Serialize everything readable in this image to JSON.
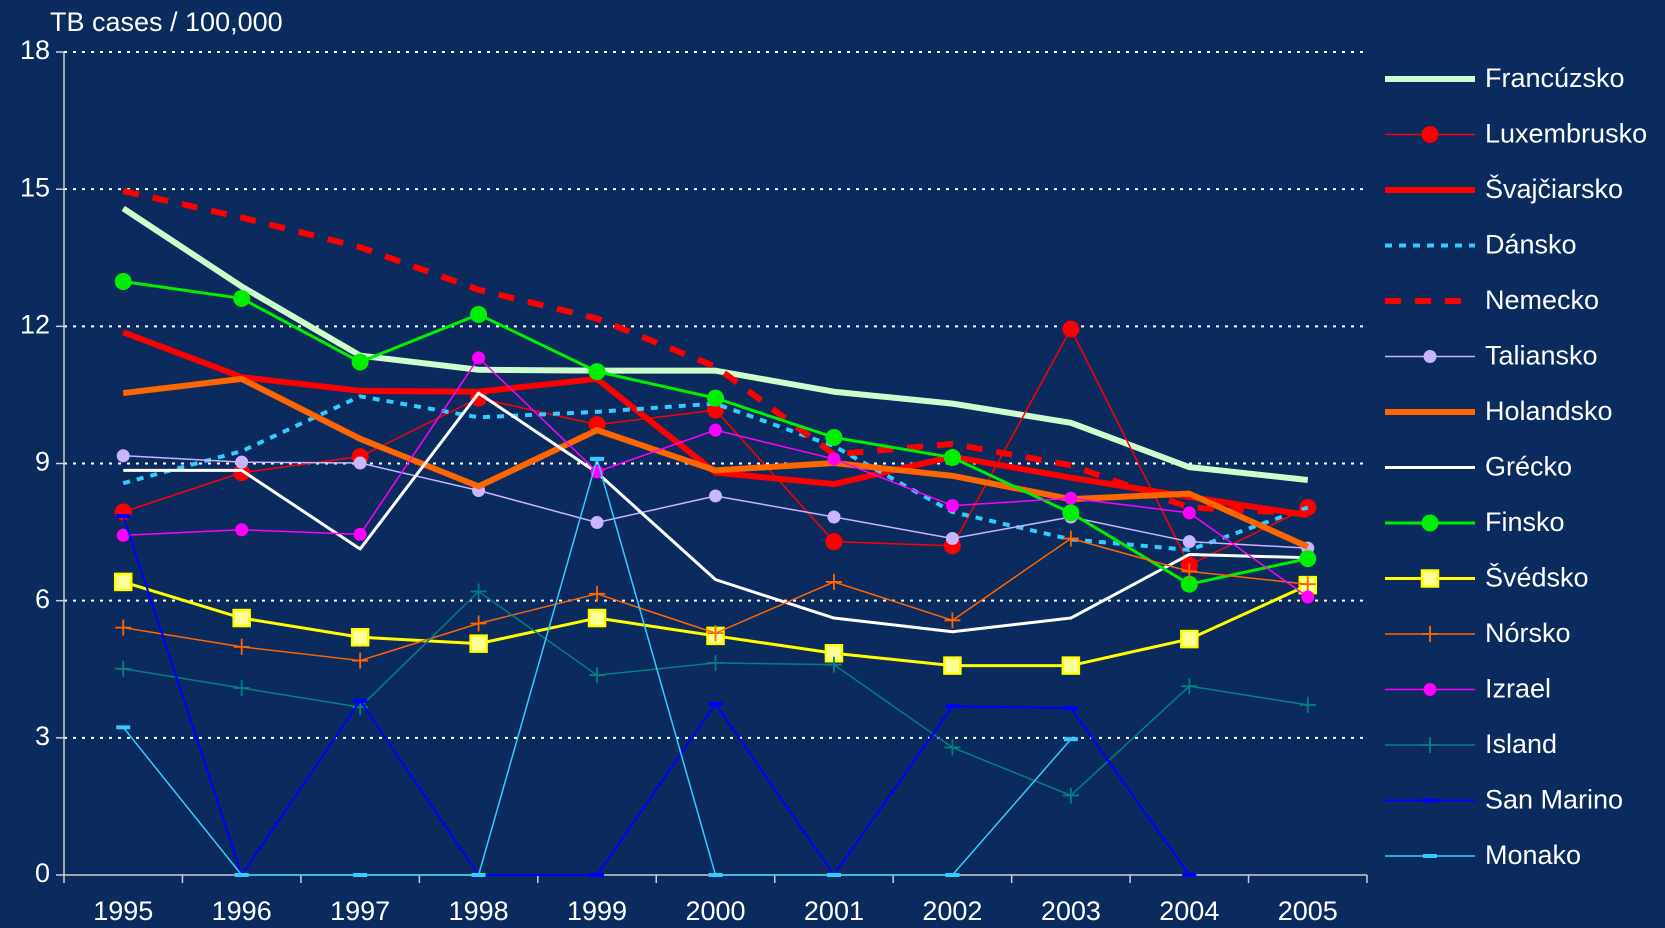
{
  "chart_data": {
    "type": "line",
    "y_axis_label": "TB cases / 100,000",
    "categories": [
      "1995",
      "1996",
      "1997",
      "1998",
      "1999",
      "2000",
      "2001",
      "2002",
      "2003",
      "2004",
      "2005"
    ],
    "ylim": [
      0,
      18
    ],
    "yticks": [
      0,
      3,
      6,
      9,
      12,
      15,
      18
    ],
    "grid": true,
    "legend": "right",
    "series": [
      {
        "name": "Francúzsko",
        "color": "#ccffcc",
        "width": 6,
        "marker": "none",
        "dash": "solid",
        "values": [
          14.58,
          12.87,
          11.36,
          11.05,
          11.03,
          11.03,
          10.57,
          10.31,
          9.89,
          8.92,
          8.64
        ]
      },
      {
        "name": "Luxembrusko",
        "color": "#ff0000",
        "width": 1.5,
        "marker": "circle",
        "dash": "solid",
        "values": [
          7.94,
          8.8,
          9.15,
          10.43,
          9.85,
          10.17,
          7.29,
          7.2,
          11.94,
          6.78,
          8.04
        ]
      },
      {
        "name": "Švajčiarsko",
        "color": "#ff0000",
        "width": 6,
        "marker": "none",
        "dash": "solid",
        "values": [
          11.87,
          10.89,
          10.59,
          10.57,
          10.85,
          8.8,
          8.55,
          9.15,
          8.69,
          8.27,
          7.87
        ]
      },
      {
        "name": "Dánsko",
        "color": "#33ccff",
        "width": 4,
        "marker": "none",
        "dash": "dotted",
        "values": [
          8.57,
          9.27,
          10.47,
          10.01,
          10.13,
          10.31,
          9.38,
          7.94,
          7.34,
          7.11,
          8.04
        ]
      },
      {
        "name": "Nemecko",
        "color": "#ff0000",
        "width": 6,
        "marker": "none",
        "dash": "dashed",
        "values": [
          14.96,
          14.38,
          13.73,
          12.8,
          12.17,
          11.12,
          9.2,
          9.43,
          8.96,
          8.04,
          7.9
        ]
      },
      {
        "name": "Taliansko",
        "color": "#c8b4ff",
        "width": 1.5,
        "marker": "dot",
        "dash": "solid",
        "values": [
          9.17,
          9.03,
          9.01,
          8.41,
          7.71,
          8.29,
          7.83,
          7.36,
          7.83,
          7.29,
          7.15
        ]
      },
      {
        "name": "Holandsko",
        "color": "#ff6600",
        "width": 6,
        "marker": "none",
        "dash": "solid",
        "values": [
          10.54,
          10.85,
          9.54,
          8.5,
          9.73,
          8.85,
          9.01,
          8.73,
          8.22,
          8.34,
          7.18
        ]
      },
      {
        "name": "Grécko",
        "color": "#ffffff",
        "width": 3,
        "marker": "none",
        "dash": "solid",
        "values": [
          8.85,
          8.85,
          7.13,
          10.54,
          8.8,
          6.46,
          5.62,
          5.32,
          5.62,
          7.01,
          6.94
        ]
      },
      {
        "name": "Finsko",
        "color": "#00ee00",
        "width": 3,
        "marker": "circle",
        "dash": "solid",
        "values": [
          12.98,
          12.61,
          11.22,
          12.26,
          11.01,
          10.43,
          9.57,
          9.13,
          7.92,
          6.36,
          6.92
        ]
      },
      {
        "name": "Švédsko",
        "color": "#ffff00",
        "width": 3,
        "marker": "square",
        "dash": "solid",
        "values": [
          6.41,
          5.62,
          5.2,
          5.06,
          5.62,
          5.23,
          4.85,
          4.58,
          4.58,
          5.16,
          6.34
        ]
      },
      {
        "name": "Nórsko",
        "color": "#ff6600",
        "width": 1.5,
        "marker": "plus",
        "dash": "solid",
        "values": [
          5.41,
          4.99,
          4.69,
          5.5,
          6.15,
          5.29,
          6.41,
          5.57,
          7.36,
          6.64,
          6.36
        ]
      },
      {
        "name": "Izrael",
        "color": "#ff00ff",
        "width": 1.5,
        "marker": "dot",
        "dash": "solid",
        "values": [
          7.43,
          7.55,
          7.45,
          11.31,
          8.82,
          9.73,
          9.1,
          8.08,
          8.24,
          7.92,
          6.08
        ]
      },
      {
        "name": "Island",
        "color": "#008080",
        "width": 1.5,
        "marker": "plus",
        "dash": "solid",
        "values": [
          4.51,
          4.09,
          3.67,
          6.2,
          4.37,
          4.64,
          4.6,
          2.79,
          1.74,
          4.13,
          3.72
        ]
      },
      {
        "name": "San Marino",
        "color": "#0000ff",
        "width": 2,
        "marker": "dash",
        "dash": "solid",
        "values": [
          7.85,
          0,
          3.81,
          0,
          0,
          3.74,
          0,
          3.69,
          3.65,
          0,
          null
        ]
      },
      {
        "name": "Monako",
        "color": "#33ccff",
        "width": 1.5,
        "marker": "dash",
        "dash": "solid",
        "values": [
          3.23,
          0,
          0,
          0,
          9.1,
          0,
          0,
          0,
          2.97,
          null,
          null
        ]
      }
    ]
  }
}
